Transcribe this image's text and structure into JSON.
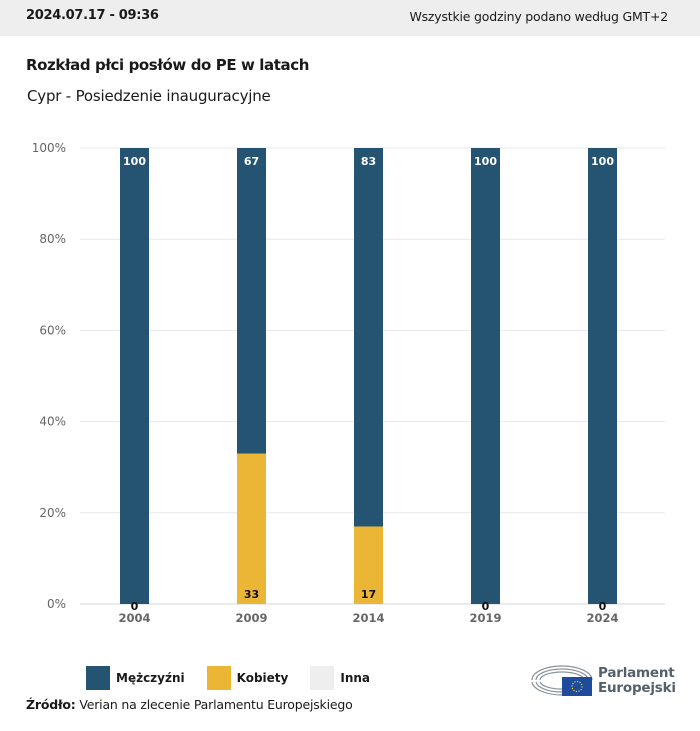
{
  "header": {
    "timestamp": "2024.07.17 - 09:36",
    "timezone_note": "Wszystkie godziny podano według GMT+2"
  },
  "title": "Rozkład płci posłów do PE w latach",
  "subtitle": "Cypr - Posiedzenie inauguracyjne",
  "colors": {
    "men": "#255372",
    "women": "#ebb535",
    "other": "#eeeeee"
  },
  "chart_data": {
    "type": "bar",
    "stacked": true,
    "title": "Rozkład płci posłów do PE w latach",
    "subtitle": "Cypr - Posiedzenie inauguracyjne",
    "categories": [
      "2004",
      "2009",
      "2014",
      "2019",
      "2024"
    ],
    "series": [
      {
        "name": "Mężczyźni",
        "color": "#255372",
        "values": [
          100,
          67,
          83,
          100,
          100
        ]
      },
      {
        "name": "Kobiety",
        "color": "#ebb535",
        "values": [
          0,
          33,
          17,
          0,
          0
        ]
      },
      {
        "name": "Inna",
        "color": "#eeeeee",
        "values": [
          0,
          0,
          0,
          0,
          0
        ]
      }
    ],
    "yticks": [
      "0%",
      "20%",
      "40%",
      "60%",
      "80%",
      "100%"
    ],
    "ylim": [
      0,
      100
    ],
    "xlabel": "",
    "ylabel": "",
    "grid": true,
    "legend": "bottom-left"
  },
  "legend": [
    {
      "label": "Mężczyźni",
      "color": "#255372"
    },
    {
      "label": "Kobiety",
      "color": "#ebb535"
    },
    {
      "label": "Inna",
      "color": "#eeeeee"
    }
  ],
  "source": {
    "label": "Źródło:",
    "text": " Verian na zlecenie Parlamentu Europejskiego"
  },
  "logo": {
    "line1": "Parlament",
    "line2": "Europejski"
  }
}
